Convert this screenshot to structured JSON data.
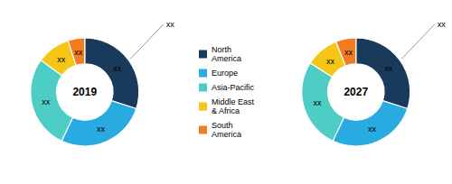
{
  "chart_data": [
    {
      "type": "pie",
      "title": "2019",
      "categories": [
        "North\nAmerica",
        "Europe",
        "Asia-Pacific",
        "Middle East\n& Africa",
        "South\nAmerica"
      ],
      "values": [
        30,
        27,
        28,
        10,
        5
      ],
      "colors": [
        "#1a3a5c",
        "#29abe2",
        "#4ecdc4",
        "#f5c518",
        "#f47c20"
      ],
      "data_labels": true,
      "value_labels": [
        "xx",
        "xx",
        "xx",
        "xx",
        "xx"
      ],
      "annotations": [
        "xx"
      ],
      "legend": "center"
    },
    {
      "type": "pie",
      "title": "2027",
      "values": [
        30,
        27,
        27,
        10,
        6
      ],
      "colors": [
        "#1a3a5c",
        "#29abe2",
        "#4ecdc4",
        "#f5c518",
        "#f47c20"
      ],
      "data_labels": true,
      "value_labels": [
        "xx",
        "xx",
        "xx",
        "xx",
        "xx"
      ],
      "annotations": [
        "xx"
      ]
    }
  ]
}
